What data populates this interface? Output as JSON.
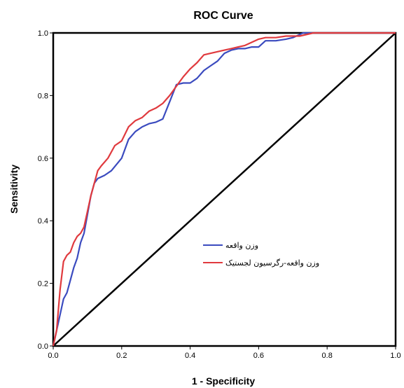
{
  "chart_data": {
    "type": "line",
    "title": "ROC Curve",
    "xlabel": "1 - Specificity",
    "ylabel": "Sensitivity",
    "xlim": [
      0,
      1
    ],
    "ylim": [
      0,
      1
    ],
    "xticks": [
      "0.0",
      "0.2",
      "0.4",
      "0.6",
      "0.8",
      "1.0"
    ],
    "yticks": [
      "0.0",
      "0.2",
      "0.4",
      "0.6",
      "0.8",
      "1.0"
    ],
    "grid": false,
    "legend": {
      "position": "center-right"
    },
    "series": [
      {
        "name": "وزن واقعه",
        "color": "#3b4bbf",
        "x": [
          0,
          0.01,
          0.02,
          0.03,
          0.04,
          0.05,
          0.06,
          0.07,
          0.08,
          0.09,
          0.1,
          0.11,
          0.12,
          0.13,
          0.15,
          0.17,
          0.2,
          0.22,
          0.24,
          0.26,
          0.28,
          0.3,
          0.32,
          0.34,
          0.36,
          0.38,
          0.4,
          0.42,
          0.44,
          0.46,
          0.48,
          0.5,
          0.52,
          0.54,
          0.56,
          0.58,
          0.6,
          0.62,
          0.65,
          0.68,
          0.7,
          0.73,
          0.76,
          0.8,
          0.9,
          1.0
        ],
        "y": [
          0,
          0.05,
          0.1,
          0.15,
          0.17,
          0.21,
          0.25,
          0.28,
          0.33,
          0.36,
          0.42,
          0.48,
          0.52,
          0.535,
          0.545,
          0.56,
          0.6,
          0.66,
          0.685,
          0.7,
          0.71,
          0.715,
          0.725,
          0.78,
          0.835,
          0.84,
          0.84,
          0.855,
          0.88,
          0.895,
          0.91,
          0.935,
          0.945,
          0.95,
          0.95,
          0.955,
          0.955,
          0.975,
          0.975,
          0.98,
          0.985,
          1.0,
          1.0,
          1.0,
          1.0,
          1.0
        ]
      },
      {
        "name": "وزن واقعه-رگرسیون لجستیک",
        "color": "#e03a3e",
        "x": [
          0,
          0.01,
          0.02,
          0.03,
          0.04,
          0.05,
          0.06,
          0.07,
          0.08,
          0.09,
          0.1,
          0.11,
          0.12,
          0.13,
          0.14,
          0.16,
          0.18,
          0.2,
          0.22,
          0.24,
          0.26,
          0.28,
          0.3,
          0.32,
          0.34,
          0.36,
          0.38,
          0.4,
          0.42,
          0.44,
          0.46,
          0.48,
          0.5,
          0.52,
          0.54,
          0.56,
          0.58,
          0.6,
          0.62,
          0.65,
          0.68,
          0.72,
          0.76,
          0.8,
          0.9,
          1.0
        ],
        "y": [
          0,
          0.05,
          0.18,
          0.27,
          0.29,
          0.3,
          0.33,
          0.35,
          0.36,
          0.38,
          0.43,
          0.48,
          0.52,
          0.56,
          0.575,
          0.6,
          0.64,
          0.655,
          0.7,
          0.72,
          0.73,
          0.75,
          0.76,
          0.775,
          0.8,
          0.83,
          0.86,
          0.885,
          0.905,
          0.93,
          0.935,
          0.94,
          0.945,
          0.95,
          0.955,
          0.96,
          0.97,
          0.98,
          0.985,
          0.985,
          0.99,
          0.99,
          1.0,
          1.0,
          1.0,
          1.0
        ]
      },
      {
        "name": "",
        "color": "#000000",
        "x": [
          0,
          1
        ],
        "y": [
          0,
          1
        ]
      }
    ]
  }
}
